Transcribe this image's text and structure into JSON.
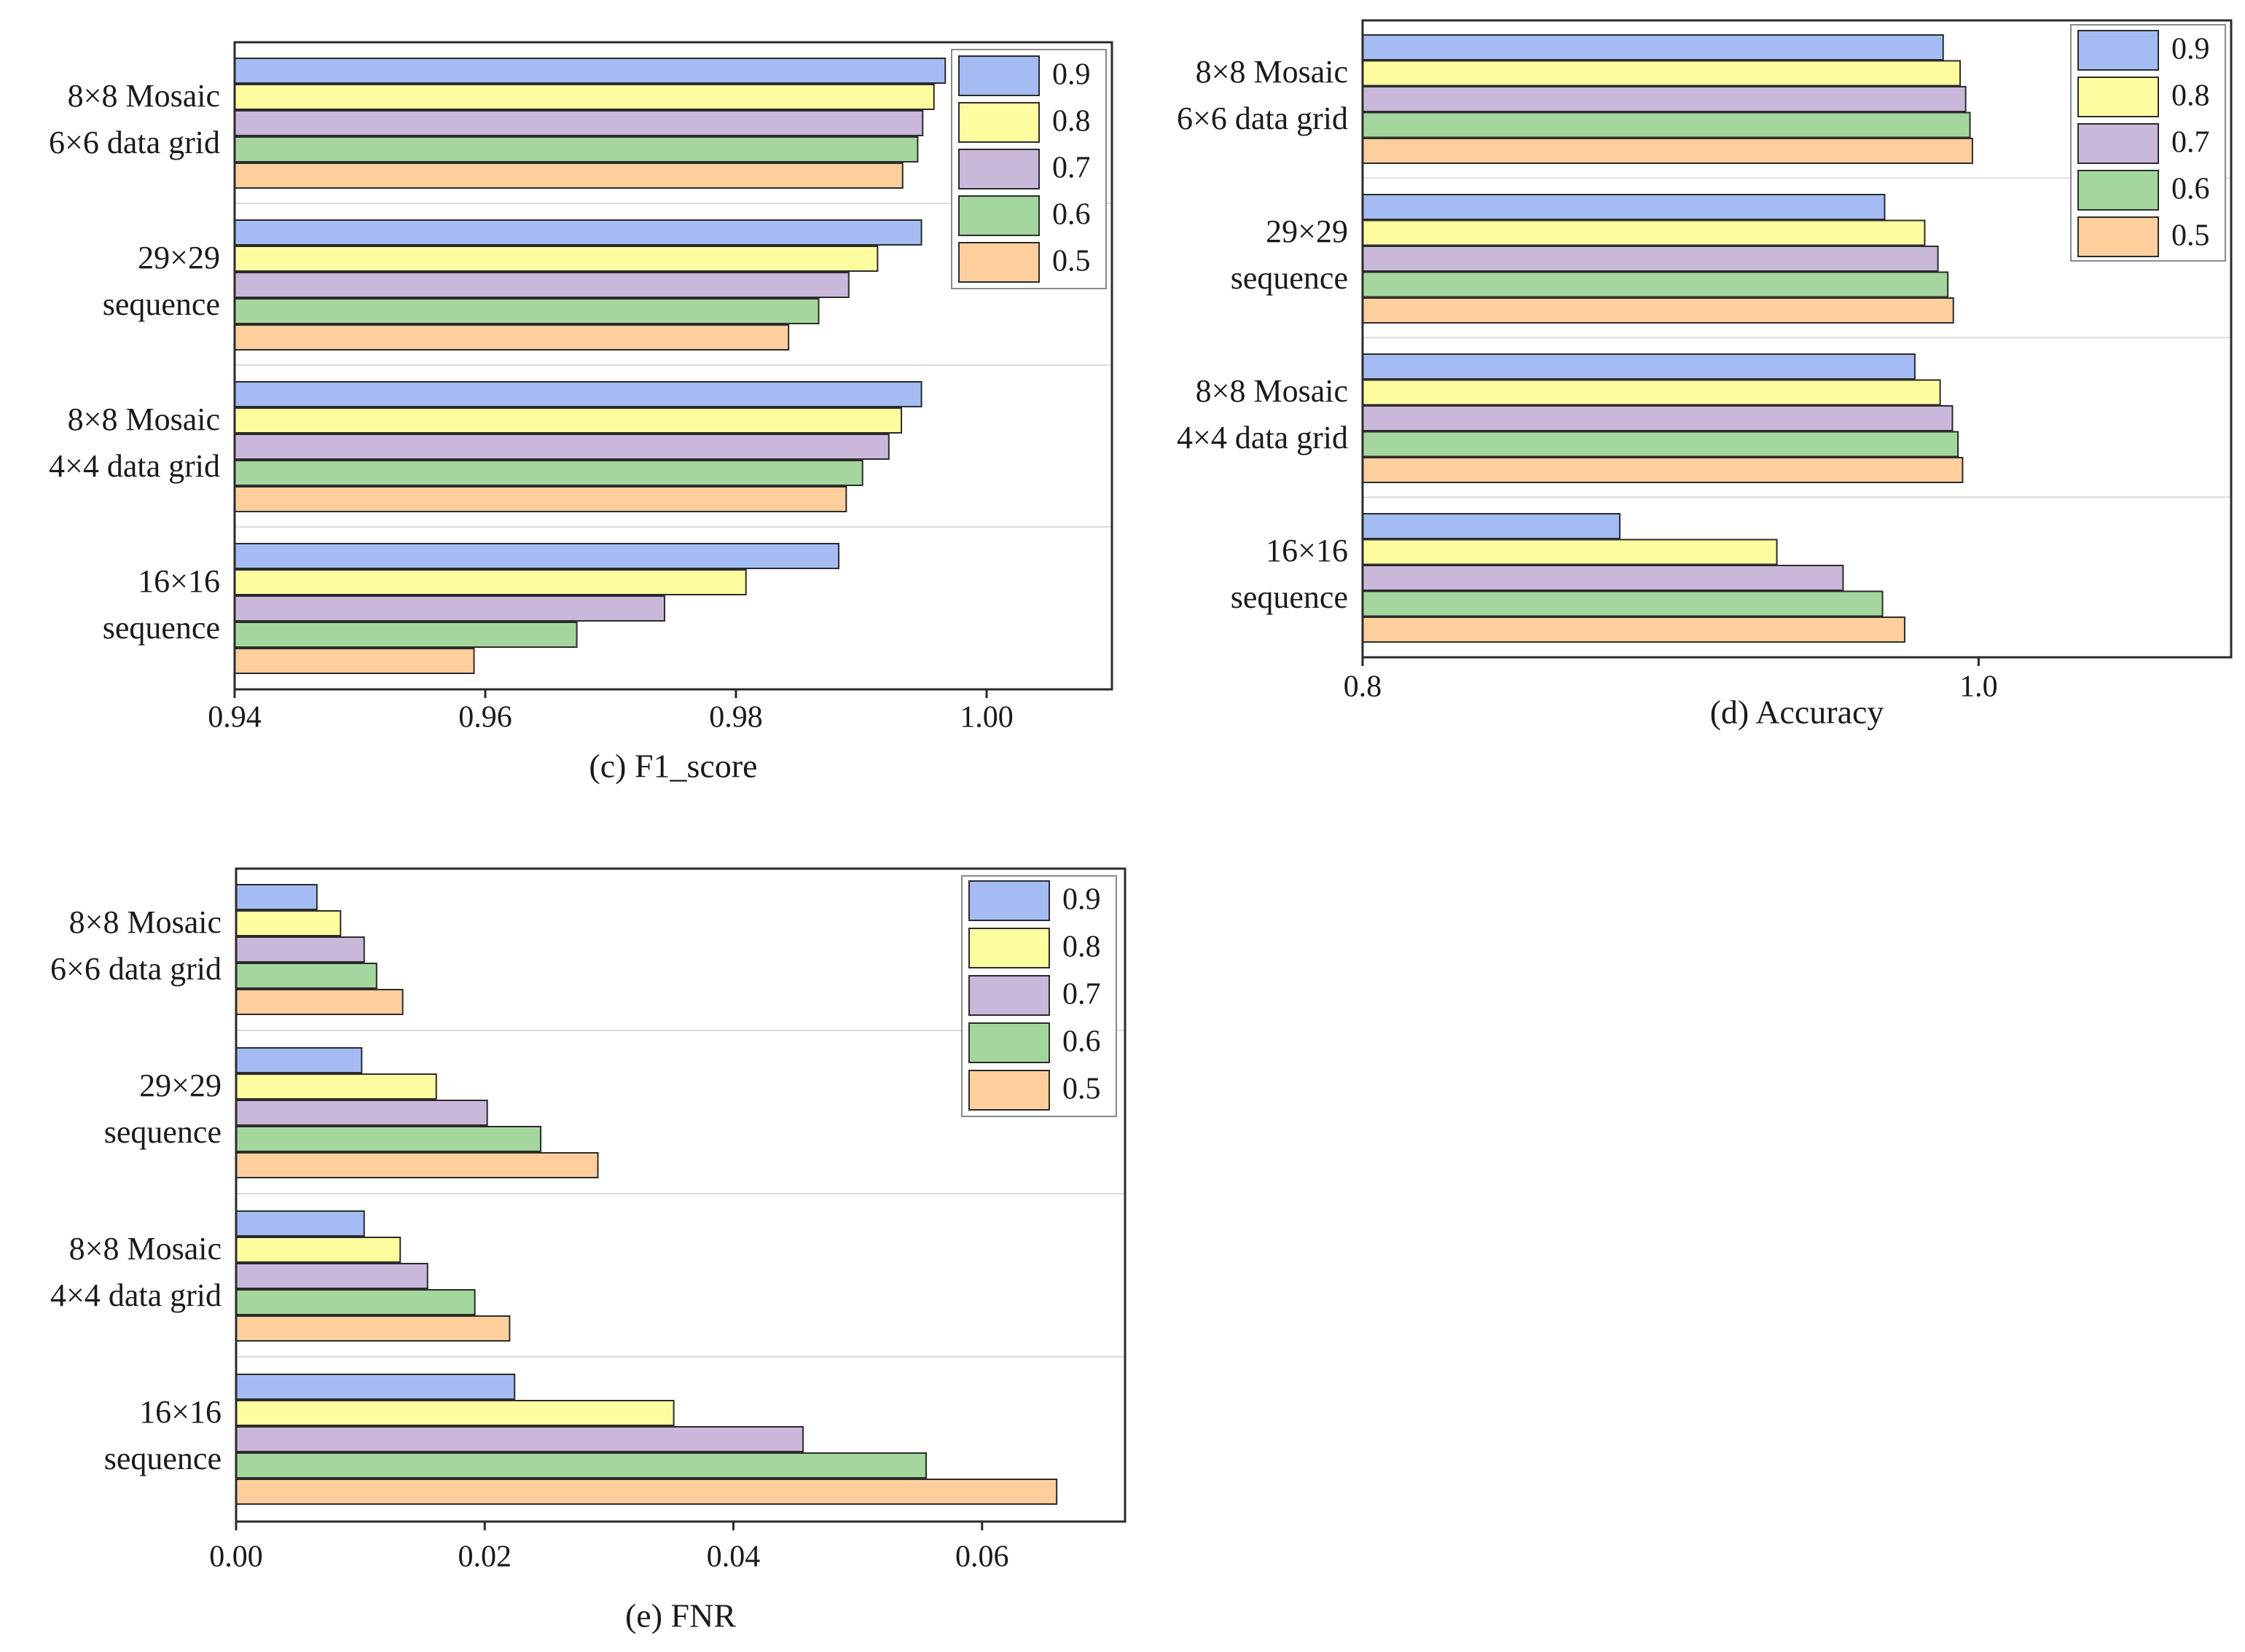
{
  "colors": {
    "0.9": "#a4bbf3",
    "0.8": "#fdfc9f",
    "0.7": "#c9b8da",
    "0.6": "#a4d79d",
    "0.5": "#fecf9d",
    "edge": "#2b2b2b",
    "grid": "#dcdcdc"
  },
  "chart_data": [
    {
      "type": "bar",
      "orientation": "horizontal",
      "title": "(c) F1_score",
      "xlabel": "(c) F1_score",
      "xlim": [
        0.94,
        1.01
      ],
      "xticks": [
        0.94,
        0.96,
        0.98,
        1.0
      ],
      "xtick_labels": [
        "0.94",
        "0.96",
        "0.98",
        "1.00"
      ],
      "legend_position": "top-right",
      "categories": [
        [
          "8×8 Mosaic",
          "6×6 data grid"
        ],
        [
          "29×29",
          "sequence"
        ],
        [
          "8×8 Mosaic",
          "4×4 data grid"
        ],
        [
          "16×16",
          "sequence"
        ]
      ],
      "series": [
        {
          "name": "0.9",
          "values": [
            0.9967,
            0.9948,
            0.9948,
            0.9882
          ]
        },
        {
          "name": "0.8",
          "values": [
            0.9958,
            0.9913,
            0.9932,
            0.9808
          ]
        },
        {
          "name": "0.7",
          "values": [
            0.9949,
            0.989,
            0.9922,
            0.9743
          ]
        },
        {
          "name": "0.6",
          "values": [
            0.9945,
            0.9866,
            0.9901,
            0.9673
          ]
        },
        {
          "name": "0.5",
          "values": [
            0.9933,
            0.9842,
            0.9888,
            0.9591
          ]
        }
      ]
    },
    {
      "type": "bar",
      "orientation": "horizontal",
      "title": "(d) Accuracy",
      "xlabel": "(d) Accuracy",
      "xlim": [
        0.8,
        1.082
      ],
      "xticks": [
        0.8,
        1.0
      ],
      "xtick_labels": [
        "0.8",
        "1.0"
      ],
      "legend_position": "top-right",
      "categories": [
        [
          "8×8 Mosaic",
          "6×6 data grid"
        ],
        [
          "29×29",
          "sequence"
        ],
        [
          "8×8 Mosaic",
          "4×4 data grid"
        ],
        [
          "16×16",
          "sequence"
        ]
      ],
      "series": [
        {
          "name": "0.9",
          "values": [
            0.9885,
            0.9695,
            0.9793,
            0.8835
          ]
        },
        {
          "name": "0.8",
          "values": [
            0.994,
            0.9825,
            0.9875,
            0.9345
          ]
        },
        {
          "name": "0.7",
          "values": [
            0.9958,
            0.9868,
            0.9915,
            0.956
          ]
        },
        {
          "name": "0.6",
          "values": [
            0.9972,
            0.99,
            0.9933,
            0.9688
          ]
        },
        {
          "name": "0.5",
          "values": [
            0.998,
            0.9918,
            0.9948,
            0.976
          ]
        }
      ]
    },
    {
      "type": "bar",
      "orientation": "horizontal",
      "title": "(e) FNR",
      "xlabel": "(e) FNR",
      "xlim": [
        0.0,
        0.0715
      ],
      "xticks": [
        0.0,
        0.02,
        0.04,
        0.06
      ],
      "xtick_labels": [
        "0.00",
        "0.02",
        "0.04",
        "0.06"
      ],
      "legend_position": "top-right",
      "categories": [
        [
          "8×8 Mosaic",
          "6×6 data grid"
        ],
        [
          "29×29",
          "sequence"
        ],
        [
          "8×8 Mosaic",
          "4×4 data grid"
        ],
        [
          "16×16",
          "sequence"
        ]
      ],
      "series": [
        {
          "name": "0.9",
          "values": [
            0.0065,
            0.0101,
            0.0103,
            0.0224
          ]
        },
        {
          "name": "0.8",
          "values": [
            0.0084,
            0.0161,
            0.0132,
            0.0352
          ]
        },
        {
          "name": "0.7",
          "values": [
            0.0103,
            0.0202,
            0.0154,
            0.0456
          ]
        },
        {
          "name": "0.6",
          "values": [
            0.0113,
            0.0245,
            0.0192,
            0.0555
          ]
        },
        {
          "name": "0.5",
          "values": [
            0.0134,
            0.0291,
            0.022,
            0.066
          ]
        }
      ]
    }
  ]
}
